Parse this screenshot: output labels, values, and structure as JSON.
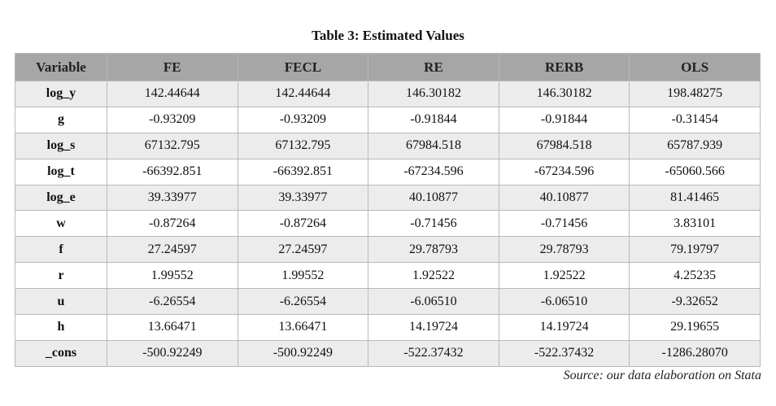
{
  "caption": "Table 3: Estimated Values",
  "table": {
    "columns": [
      "Variable",
      "FE",
      "FECL",
      "RE",
      "RERB",
      "OLS"
    ],
    "rows": [
      [
        "log_y",
        "142.44644",
        "142.44644",
        "146.30182",
        "146.30182",
        "198.48275"
      ],
      [
        "g",
        "-0.93209",
        "-0.93209",
        "-0.91844",
        "-0.91844",
        "-0.31454"
      ],
      [
        "log_s",
        "67132.795",
        "67132.795",
        "67984.518",
        "67984.518",
        "65787.939"
      ],
      [
        "log_t",
        "-66392.851",
        "-66392.851",
        "-67234.596",
        "-67234.596",
        "-65060.566"
      ],
      [
        "log_e",
        "39.33977",
        "39.33977",
        "40.10877",
        "40.10877",
        "81.41465"
      ],
      [
        "w",
        "-0.87264",
        "-0.87264",
        "-0.71456",
        "-0.71456",
        "3.83101"
      ],
      [
        "f",
        "27.24597",
        "27.24597",
        "29.78793",
        "29.78793",
        "79.19797"
      ],
      [
        "r",
        "1.99552",
        "1.99552",
        "1.92522",
        "1.92522",
        "4.25235"
      ],
      [
        "u",
        "-6.26554",
        "-6.26554",
        "-6.06510",
        "-6.06510",
        "-9.32652"
      ],
      [
        "h",
        "13.66471",
        "13.66471",
        "14.19724",
        "14.19724",
        "29.19655"
      ],
      [
        "_cons",
        "-500.92249",
        "-500.92249",
        "-522.37432",
        "-522.37432",
        "-1286.28070"
      ]
    ]
  },
  "source": "Source: our data elaboration on Stata",
  "colors": {
    "header_bg": "#a6a6a6",
    "band_bg": "#ececec",
    "border": "#b9b9b9"
  }
}
